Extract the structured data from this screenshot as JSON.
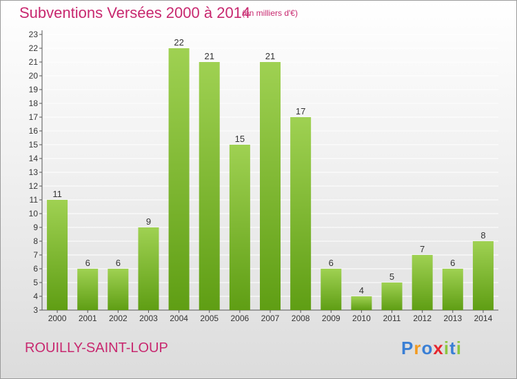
{
  "header": {
    "title": "Subventions Versées 2000 à 2014",
    "unit": "(en milliers d'€)"
  },
  "footer": {
    "commune": "ROUILLY-SAINT-LOUP",
    "logo": "Proxiti",
    "logo_colors": [
      "#3a7fd5",
      "#f29a1f",
      "#3a7fd5",
      "#e6262e",
      "#8cc63f",
      "#3a7fd5",
      "#8cc63f"
    ]
  },
  "colors": {
    "bar_light": "#9fd152",
    "bar_dark": "#5f9e14",
    "title": "#c8286f",
    "grid": "#ffffff",
    "text": "#333333"
  },
  "chart_data": {
    "type": "bar",
    "title": "Subventions Versées 2000 à 2014",
    "subtitle": "(en milliers d'€)",
    "categories": [
      "2000",
      "2001",
      "2002",
      "2003",
      "2004",
      "2005",
      "2006",
      "2007",
      "2008",
      "2009",
      "2010",
      "2011",
      "2012",
      "2013",
      "2014"
    ],
    "values": [
      11,
      6,
      6,
      9,
      22,
      21,
      15,
      21,
      17,
      6,
      4,
      5,
      7,
      6,
      8
    ],
    "data_labels": [
      "11",
      "6",
      "6",
      "9",
      "22",
      "21",
      "15",
      "21",
      "17",
      "6",
      "4",
      "5",
      "7",
      "6",
      "8"
    ],
    "y_ticks": [
      "3",
      "4",
      "5",
      "6",
      "7",
      "8",
      "9",
      "10",
      "11",
      "12",
      "13",
      "14",
      "15",
      "16",
      "17",
      "18",
      "19",
      "20",
      "21",
      "22",
      "23"
    ],
    "ylim": [
      3,
      23
    ],
    "grid": true,
    "legend": "none"
  }
}
